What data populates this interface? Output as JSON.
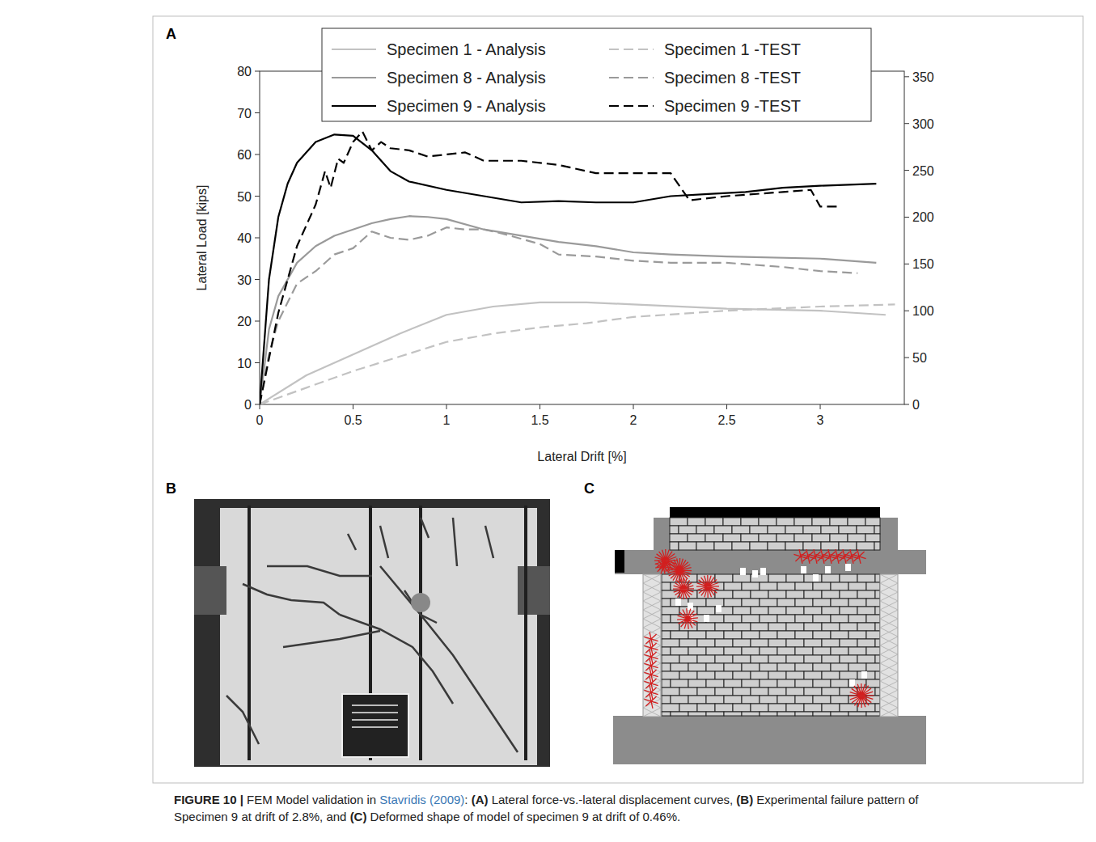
{
  "chart_data": {
    "type": "line",
    "x_label": "Lateral Drift [%]",
    "y_label": "Lateral Load [kips]",
    "xlim": [
      0,
      3.45
    ],
    "xticks": [
      0,
      0.5,
      1,
      1.5,
      2,
      2.5,
      3
    ],
    "ylim": [
      0,
      80
    ],
    "yticks": [
      0,
      10,
      20,
      30,
      40,
      50,
      60,
      70,
      80
    ],
    "y2lim": [
      0,
      355.9
    ],
    "y2ticks": [
      0,
      50,
      100,
      150,
      200,
      250,
      300,
      350
    ],
    "grid": false,
    "legend": "top",
    "series": [
      {
        "name": "Specimen 1 - Analysis",
        "color": "#c2c2c2",
        "line_style": "solid",
        "x": [
          0,
          0.25,
          0.5,
          0.75,
          1,
          1.25,
          1.5,
          1.75,
          2,
          2.5,
          3,
          3.35
        ],
        "values": [
          0,
          7,
          12,
          17,
          21.5,
          23.5,
          24.5,
          24.5,
          24,
          23,
          22.5,
          21.5
        ]
      },
      {
        "name": "Specimen 1 -TEST",
        "color": "#c2c2c2",
        "line_style": "dashed",
        "x": [
          0,
          0.25,
          0.5,
          0.75,
          1,
          1.25,
          1.5,
          1.75,
          2,
          2.5,
          3,
          3.4
        ],
        "values": [
          0,
          4,
          8,
          11.5,
          15,
          17,
          18.5,
          19.5,
          21,
          22.5,
          23.5,
          24
        ]
      },
      {
        "name": "Specimen 8 - Analysis",
        "color": "#9a9a9a",
        "line_style": "solid",
        "x": [
          0,
          0.05,
          0.1,
          0.2,
          0.3,
          0.4,
          0.5,
          0.6,
          0.7,
          0.8,
          0.9,
          1,
          1.2,
          1.4,
          1.6,
          1.8,
          2,
          2.2,
          2.5,
          3,
          3.3
        ],
        "values": [
          0,
          18,
          26,
          34,
          38,
          40.5,
          42,
          43.5,
          44.5,
          45.2,
          45,
          44.5,
          42,
          40.5,
          39,
          38,
          36.5,
          36,
          35.5,
          35,
          34
        ]
      },
      {
        "name": "Specimen 8 -TEST",
        "color": "#9a9a9a",
        "line_style": "dashed",
        "x": [
          0,
          0.05,
          0.1,
          0.2,
          0.3,
          0.4,
          0.5,
          0.6,
          0.7,
          0.8,
          0.9,
          1,
          1.1,
          1.2,
          1.3,
          1.5,
          1.6,
          1.8,
          2,
          2.2,
          2.5,
          2.8,
          3,
          3.2
        ],
        "values": [
          0,
          12,
          20,
          29,
          32,
          36,
          37.5,
          41.5,
          40,
          39.5,
          40.5,
          42.5,
          42,
          42,
          41,
          38.5,
          36,
          35.5,
          34.5,
          34,
          34,
          33,
          32,
          31.5
        ]
      },
      {
        "name": "Specimen 9 - Analysis",
        "color": "#000000",
        "line_style": "solid",
        "x": [
          0,
          0.05,
          0.1,
          0.15,
          0.2,
          0.3,
          0.4,
          0.5,
          0.6,
          0.7,
          0.8,
          1,
          1.2,
          1.4,
          1.6,
          1.8,
          2,
          2.2,
          2.4,
          2.6,
          2.8,
          3,
          3.3
        ],
        "values": [
          0,
          30,
          45,
          53,
          58,
          63,
          64.8,
          64.5,
          61,
          56,
          53.5,
          51.5,
          50,
          48.5,
          48.8,
          48.5,
          48.5,
          50,
          50.5,
          51,
          52,
          52.5,
          53
        ]
      },
      {
        "name": "Specimen 9 -TEST",
        "color": "#000000",
        "line_style": "dashed",
        "x": [
          0,
          0.1,
          0.2,
          0.3,
          0.35,
          0.38,
          0.42,
          0.45,
          0.5,
          0.55,
          0.6,
          0.65,
          0.7,
          0.8,
          0.9,
          1,
          1.1,
          1.2,
          1.4,
          1.6,
          1.8,
          2,
          2.2,
          2.3,
          2.5,
          2.8,
          2.95,
          3,
          3.1
        ],
        "values": [
          0,
          22,
          38,
          48,
          56,
          52,
          59,
          58,
          63,
          65.5,
          61,
          63,
          61.5,
          61,
          59.5,
          60,
          60.5,
          58.5,
          58.5,
          57.5,
          55.5,
          55.5,
          55.5,
          49,
          50,
          51,
          51.5,
          47.5,
          47.5
        ]
      }
    ]
  },
  "panels": {
    "a": "A",
    "b": "B",
    "c": "C"
  },
  "caption": [
    {
      "text": "FIGURE 10 |",
      "style": "bold"
    },
    {
      "text": " FEM Model validation in "
    },
    {
      "text": "Stavridis (2009)",
      "style": "link",
      "color": "#3a78b5"
    },
    {
      "text": ": "
    },
    {
      "text": "(A)",
      "style": "bold"
    },
    {
      "text": " Lateral force-vs.-lateral displacement curves, "
    },
    {
      "text": "(B)",
      "style": "bold"
    },
    {
      "text": " Experimental failure pattern of Specimen 9 at drift of 2.8%, and "
    },
    {
      "text": "(C)",
      "style": "bold"
    },
    {
      "text": " Deformed shape of model of specimen 9 at drift of 0.46%."
    }
  ]
}
